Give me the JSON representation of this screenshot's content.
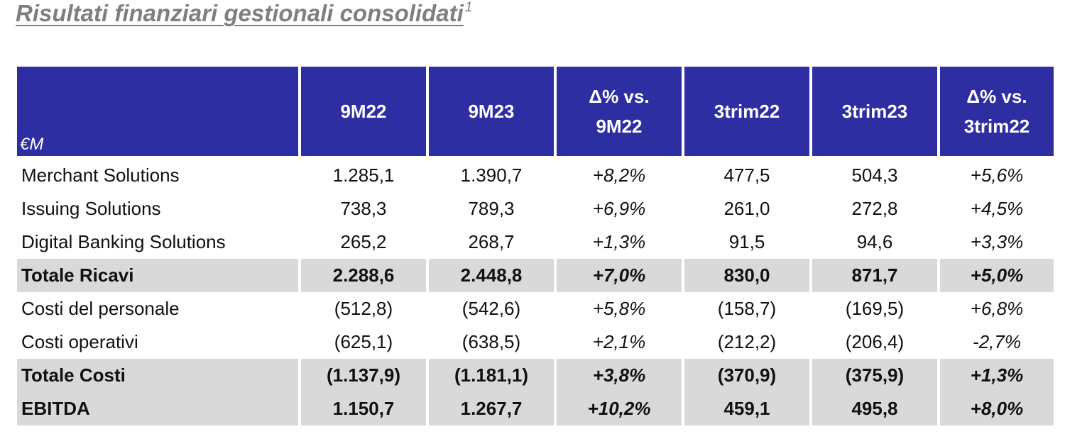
{
  "document": {
    "title": "Risultati finanziari gestionali consolidati",
    "footnote_marker": "1"
  },
  "table": {
    "unit_label": "€M",
    "headers": [
      {
        "line1": "9M22",
        "line2": ""
      },
      {
        "line1": "9M23",
        "line2": ""
      },
      {
        "line1": "Δ% vs.",
        "line2": "9M22"
      },
      {
        "line1": "3trim22",
        "line2": ""
      },
      {
        "line1": "3trim23",
        "line2": ""
      },
      {
        "line1": "Δ% vs.",
        "line2": "3trim22"
      }
    ],
    "rows": [
      {
        "label": "Merchant Solutions",
        "total": false,
        "cells": [
          "1.285,1",
          "1.390,7",
          "+8,2%",
          "477,5",
          "504,3",
          "+5,6%"
        ]
      },
      {
        "label": "Issuing Solutions",
        "total": false,
        "cells": [
          "738,3",
          "789,3",
          "+6,9%",
          "261,0",
          "272,8",
          "+4,5%"
        ]
      },
      {
        "label": "Digital Banking Solutions",
        "total": false,
        "cells": [
          "265,2",
          "268,7",
          "+1,3%",
          "91,5",
          "94,6",
          "+3,3%"
        ]
      },
      {
        "label": "Totale Ricavi",
        "total": true,
        "cells": [
          "2.288,6",
          "2.448,8",
          "+7,0%",
          "830,0",
          "871,7",
          "+5,0%"
        ]
      },
      {
        "label": "Costi del personale",
        "total": false,
        "cells": [
          "(512,8)",
          "(542,6)",
          "+5,8%",
          "(158,7)",
          "(169,5)",
          "+6,8%"
        ]
      },
      {
        "label": "Costi operativi",
        "total": false,
        "cells": [
          "(625,1)",
          "(638,5)",
          "+2,1%",
          "(212,2)",
          "(206,4)",
          "-2,7%"
        ]
      },
      {
        "label": "Totale Costi",
        "total": true,
        "cells": [
          "(1.137,9)",
          "(1.181,1)",
          "+3,8%",
          "(370,9)",
          "(375,9)",
          "+1,3%"
        ]
      },
      {
        "label": "EBITDA",
        "total": true,
        "cells": [
          "1.150,7",
          "1.267,7",
          "+10,2%",
          "459,1",
          "495,8",
          "+8,0%"
        ]
      }
    ]
  }
}
